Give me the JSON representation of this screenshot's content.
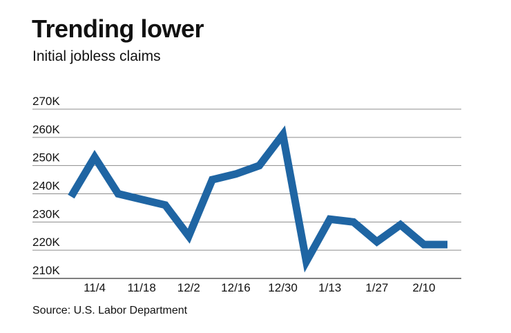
{
  "header": {
    "title": "Trending lower",
    "subtitle": "Initial jobless claims"
  },
  "footer": {
    "source": "Source: U.S. Labor Department"
  },
  "colors": {
    "line": "#1f65a3",
    "grid": "#8c8c8c",
    "axis": "#333333"
  },
  "chart_data": {
    "type": "line",
    "title": "Trending lower",
    "subtitle": "Initial jobless claims",
    "xlabel": "",
    "ylabel": "",
    "x_tick_labels": [
      "11/4",
      "11/18",
      "12/2",
      "12/16",
      "12/30",
      "1/13",
      "1/27",
      "2/10"
    ],
    "y_tick_labels": [
      "210K",
      "220K",
      "230K",
      "240K",
      "250K",
      "260K",
      "270K"
    ],
    "y_ticks": [
      210,
      220,
      230,
      240,
      250,
      260,
      270
    ],
    "ylim": [
      210,
      270
    ],
    "y_unit": "thousands",
    "grid": true,
    "series": [
      {
        "x": [
          "10/28",
          "11/4",
          "11/11",
          "11/18",
          "11/25",
          "12/2",
          "12/9",
          "12/16",
          "12/23",
          "12/30",
          "1/6",
          "1/13",
          "1/20",
          "1/27",
          "2/3",
          "2/10",
          "2/17"
        ],
        "values": [
          239,
          253,
          240,
          238,
          236,
          225,
          245,
          247,
          250,
          261,
          216,
          231,
          230,
          223,
          229,
          222,
          222
        ]
      }
    ]
  }
}
